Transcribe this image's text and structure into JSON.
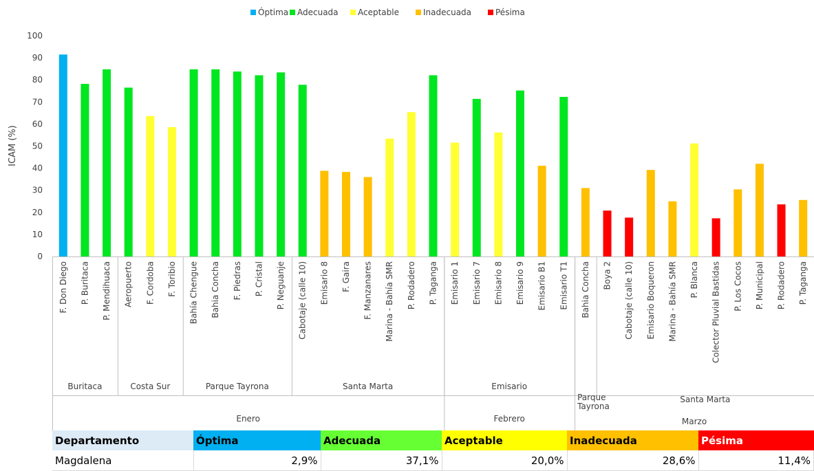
{
  "chart_data": {
    "type": "bar",
    "ylabel": "ICAM (%)",
    "ylim": [
      0,
      100
    ],
    "yticks": [
      0,
      10,
      20,
      30,
      40,
      50,
      60,
      70,
      80,
      90,
      100
    ],
    "grid": false,
    "legend_position": "top-center",
    "legend": [
      {
        "name": "Óptima",
        "color": "#00b0f0"
      },
      {
        "name": "Adecuada",
        "color": "#00e620"
      },
      {
        "name": "Aceptable",
        "color": "#ffff33"
      },
      {
        "name": "Inadecuada",
        "color": "#ffc000"
      },
      {
        "name": "Pésima",
        "color": "#ff0000"
      }
    ],
    "categories": [
      "F. Don Diego",
      "P. Buritaca",
      "P. Mendihuaca",
      "Aeropuerto",
      "F. Cordoba",
      "F. Toribio",
      "Bahía Chengue",
      "Bahia Concha",
      "F. Piedras",
      "P. Cristal",
      "P. Neguanje",
      "Cabotaje (calle 10)",
      "Emisario 8",
      "F. Gaira",
      "F. Manzanares",
      "Marina - Bahía SMR",
      "P. Rodadero",
      "P. Taganga",
      "Emisario 1",
      "Emisario 7",
      "Emisario 8",
      "Emisario 9",
      "Emisario B1",
      "Emisario T1",
      "Bahia Concha",
      "Boya 2",
      "Cabotaje (calle 10)",
      "Emisario Boqueron",
      "Marina - Bahía SMR",
      "P. Blanca",
      "Colector Pluvial Bastidas",
      "P. Los Cocos",
      "P. Municipal",
      "P. Rodadero",
      "P. Taganga"
    ],
    "values": [
      91.5,
      78.2,
      84.8,
      76.5,
      63.6,
      58.6,
      84.8,
      84.8,
      83.8,
      82.1,
      83.4,
      77.8,
      38.8,
      38.3,
      36.0,
      53.4,
      65.4,
      82.1,
      51.6,
      71.4,
      56.2,
      75.2,
      41.1,
      72.3,
      31.0,
      20.8,
      17.6,
      39.2,
      25.0,
      51.2,
      17.3,
      30.4,
      42.0,
      23.6,
      25.6
    ],
    "classes": [
      0,
      1,
      1,
      1,
      2,
      2,
      1,
      1,
      1,
      1,
      1,
      1,
      3,
      3,
      3,
      2,
      2,
      1,
      2,
      1,
      2,
      1,
      3,
      1,
      3,
      4,
      4,
      3,
      3,
      2,
      4,
      3,
      3,
      4,
      3
    ],
    "groups_level1": [
      {
        "label": "Buritaca",
        "start": 0,
        "end": 2
      },
      {
        "label": "Costa Sur",
        "start": 3,
        "end": 5
      },
      {
        "label": "Parque Tayrona",
        "start": 6,
        "end": 10
      },
      {
        "label": "Santa Marta",
        "start": 11,
        "end": 17
      },
      {
        "label": "Emisario",
        "start": 18,
        "end": 23
      },
      {
        "label": "Parque Tayrona",
        "start": 24,
        "end": 24
      },
      {
        "label": "Santa Marta",
        "start": 25,
        "end": 34
      }
    ],
    "groups_level2": [
      {
        "label": "Enero",
        "start": 0,
        "end": 17
      },
      {
        "label": "Febrero",
        "start": 18,
        "end": 23
      },
      {
        "label": "Marzo",
        "start": 24,
        "end": 34
      }
    ]
  },
  "summary_table": {
    "header_label": "Departamento",
    "headers": [
      "Óptima",
      "Adecuada",
      "Aceptable",
      "Inadecuada",
      "Pésima"
    ],
    "header_colors": [
      "#00b0f0",
      "#66ff33",
      "#ffff00",
      "#ffc000",
      "#ff0000"
    ],
    "row_name": "Magdalena",
    "values": [
      "2,9%",
      "37,1%",
      "20,0%",
      "28,6%",
      "11,4%"
    ]
  }
}
